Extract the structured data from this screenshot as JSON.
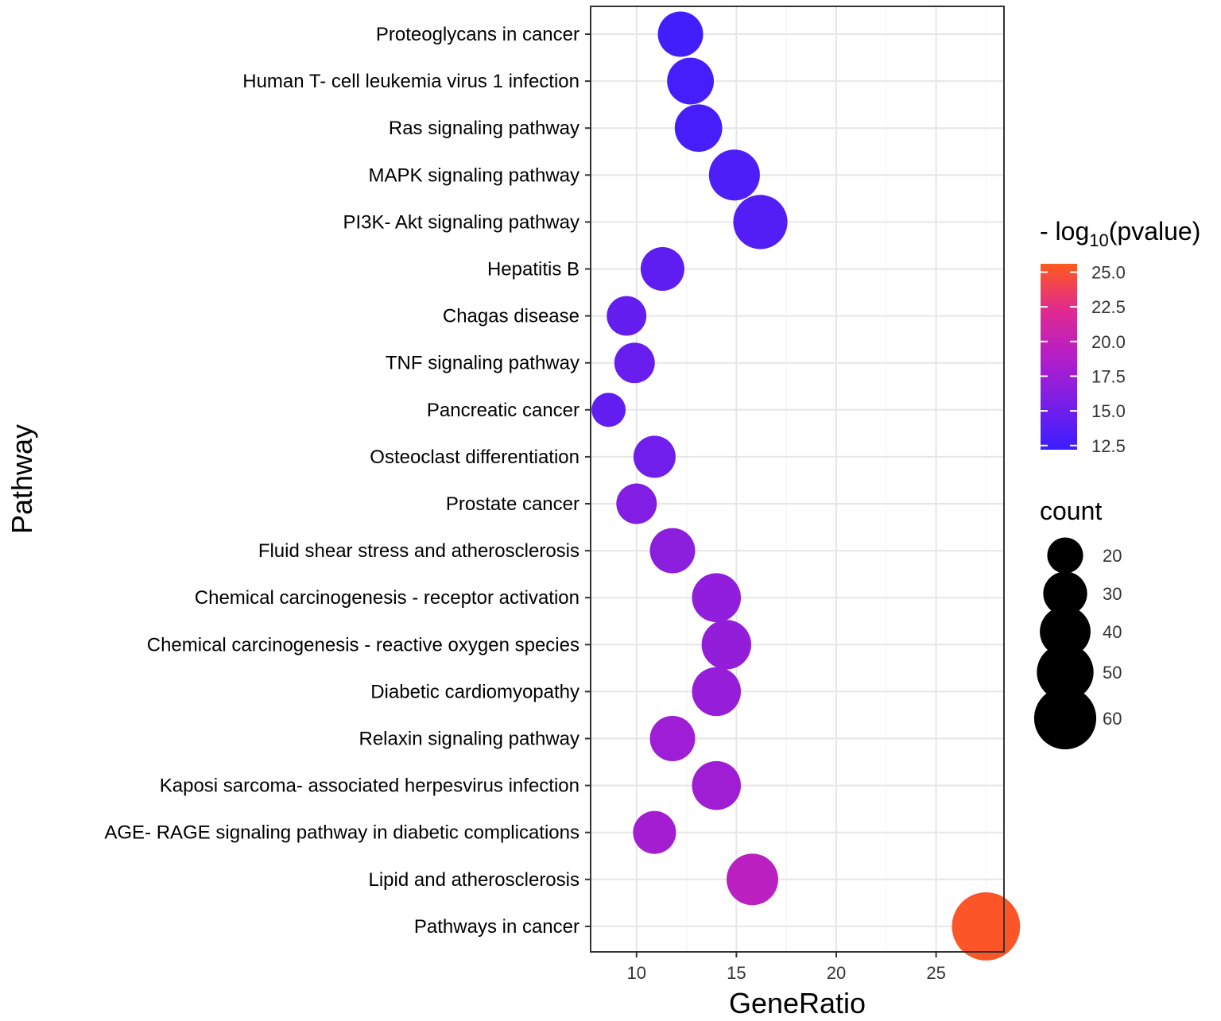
{
  "chart_data": {
    "type": "scatter",
    "title": "",
    "xlabel": "GeneRatio",
    "ylabel": "Pathway",
    "xlim": [
      7.7,
      28.4
    ],
    "xticks": [
      10,
      15,
      20,
      25
    ],
    "grid": true,
    "points": [
      {
        "pathway": "Proteoglycans in cancer",
        "gene_ratio": 12.2,
        "count": 30,
        "neglog10p": 12.6
      },
      {
        "pathway": "Human T- cell leukemia virus 1 infection",
        "gene_ratio": 12.7,
        "count": 32,
        "neglog10p": 12.8
      },
      {
        "pathway": "Ras signaling pathway",
        "gene_ratio": 13.1,
        "count": 33,
        "neglog10p": 12.9
      },
      {
        "pathway": "MAPK signaling pathway",
        "gene_ratio": 14.9,
        "count": 38,
        "neglog10p": 13.2
      },
      {
        "pathway": "PI3K- Akt signaling pathway",
        "gene_ratio": 16.2,
        "count": 43,
        "neglog10p": 13.5
      },
      {
        "pathway": "Hepatitis B",
        "gene_ratio": 11.3,
        "count": 28,
        "neglog10p": 14.1
      },
      {
        "pathway": "Chagas disease",
        "gene_ratio": 9.5,
        "count": 23,
        "neglog10p": 14.4
      },
      {
        "pathway": "TNF signaling pathway",
        "gene_ratio": 9.9,
        "count": 24,
        "neglog10p": 14.6
      },
      {
        "pathway": "Pancreatic cancer",
        "gene_ratio": 8.6,
        "count": 17,
        "neglog10p": 14.3
      },
      {
        "pathway": "Osteoclast differentiation",
        "gene_ratio": 10.9,
        "count": 26,
        "neglog10p": 15.0
      },
      {
        "pathway": "Prostate cancer",
        "gene_ratio": 10.0,
        "count": 24,
        "neglog10p": 16.0
      },
      {
        "pathway": "Fluid shear stress and atherosclerosis",
        "gene_ratio": 11.8,
        "count": 30,
        "neglog10p": 16.6
      },
      {
        "pathway": "Chemical carcinogenesis -  receptor activation",
        "gene_ratio": 14.0,
        "count": 35,
        "neglog10p": 16.8
      },
      {
        "pathway": "Chemical carcinogenesis -  reactive oxygen species",
        "gene_ratio": 14.5,
        "count": 36,
        "neglog10p": 17.0
      },
      {
        "pathway": "Diabetic cardiomyopathy",
        "gene_ratio": 14.0,
        "count": 35,
        "neglog10p": 17.2
      },
      {
        "pathway": "Relaxin signaling pathway",
        "gene_ratio": 11.8,
        "count": 30,
        "neglog10p": 17.6
      },
      {
        "pathway": "Kaposi sarcoma- associated herpesvirus infection",
        "gene_ratio": 14.0,
        "count": 35,
        "neglog10p": 17.7
      },
      {
        "pathway": "AGE- RAGE signaling pathway in diabetic complications",
        "gene_ratio": 10.9,
        "count": 27,
        "neglog10p": 18.0
      },
      {
        "pathway": "Lipid and atherosclerosis",
        "gene_ratio": 15.8,
        "count": 39,
        "neglog10p": 19.4
      },
      {
        "pathway": "Pathways in cancer",
        "gene_ratio": 27.5,
        "count": 68,
        "neglog10p": 25.3
      }
    ],
    "color_legend": {
      "title_prefix": "- log",
      "title_subscript": "10",
      "title_suffix": "(pvalue)",
      "range": [
        12.2,
        25.6
      ],
      "ticks": [
        "25.0",
        "22.5",
        "20.0",
        "17.5",
        "15.0",
        "12.5"
      ],
      "tick_values": [
        25.0,
        22.5,
        20.0,
        17.5,
        15.0,
        12.5
      ],
      "low_color": "#3a1eff",
      "high_color": "#ff5a1e"
    },
    "size_legend": {
      "title": "count",
      "labels": [
        "20",
        "30",
        "40",
        "50",
        "60"
      ],
      "values": [
        20,
        30,
        40,
        50,
        60
      ]
    },
    "colors": {
      "panel_border": "#333333",
      "grid": "#e6e6e6",
      "point_fill_scale": [
        "#3a1eff",
        "#7a1ee8",
        "#b41ec8",
        "#e02a90",
        "#ff5a1e"
      ]
    }
  }
}
